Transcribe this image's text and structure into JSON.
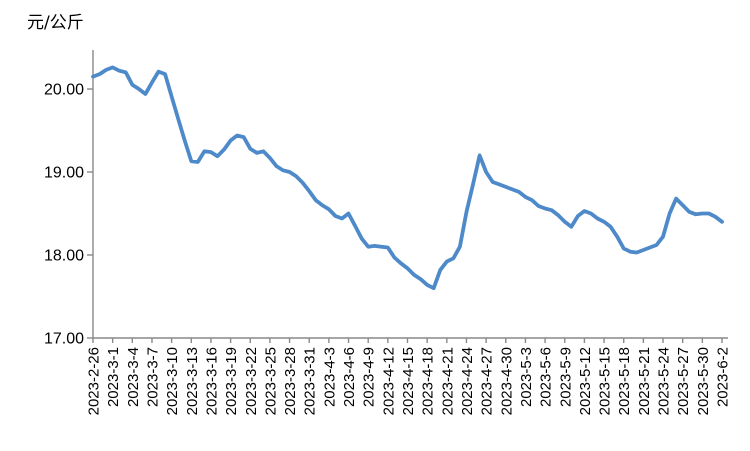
{
  "title": {
    "unit_label": "元/公斤"
  },
  "chart_data": {
    "type": "line",
    "title": "",
    "xlabel": "",
    "ylabel": "元/公斤",
    "legend": false,
    "grid": false,
    "ylim": [
      17.0,
      20.5
    ],
    "y_ticks": [
      {
        "value": 20,
        "label": "20.00"
      },
      {
        "value": 19,
        "label": "19.00"
      },
      {
        "value": 18,
        "label": "18.00"
      },
      {
        "value": 17,
        "label": "17.00"
      }
    ],
    "x_label_every": 3,
    "line_color": "#4E8AC9",
    "axis_color": "#898989",
    "x": [
      "2023-2-26",
      "2023-2-27",
      "2023-2-28",
      "2023-3-1",
      "2023-3-2",
      "2023-3-3",
      "2023-3-4",
      "2023-3-5",
      "2023-3-6",
      "2023-3-7",
      "2023-3-8",
      "2023-3-9",
      "2023-3-10",
      "2023-3-11",
      "2023-3-12",
      "2023-3-13",
      "2023-3-14",
      "2023-3-15",
      "2023-3-16",
      "2023-3-17",
      "2023-3-18",
      "2023-3-19",
      "2023-3-20",
      "2023-3-21",
      "2023-3-22",
      "2023-3-23",
      "2023-3-24",
      "2023-3-25",
      "2023-3-26",
      "2023-3-27",
      "2023-3-28",
      "2023-3-29",
      "2023-3-30",
      "2023-3-31",
      "2023-4-1",
      "2023-4-2",
      "2023-4-3",
      "2023-4-4",
      "2023-4-5",
      "2023-4-6",
      "2023-4-7",
      "2023-4-8",
      "2023-4-9",
      "2023-4-10",
      "2023-4-11",
      "2023-4-12",
      "2023-4-13",
      "2023-4-14",
      "2023-4-15",
      "2023-4-16",
      "2023-4-17",
      "2023-4-18",
      "2023-4-19",
      "2023-4-20",
      "2023-4-21",
      "2023-4-22",
      "2023-4-23",
      "2023-4-24",
      "2023-4-25",
      "2023-4-26",
      "2023-4-27",
      "2023-4-28",
      "2023-4-29",
      "2023-4-30",
      "2023-5-1",
      "2023-5-2",
      "2023-5-3",
      "2023-5-4",
      "2023-5-5",
      "2023-5-6",
      "2023-5-7",
      "2023-5-8",
      "2023-5-9",
      "2023-5-10",
      "2023-5-11",
      "2023-5-12",
      "2023-5-13",
      "2023-5-14",
      "2023-5-15",
      "2023-5-16",
      "2023-5-17",
      "2023-5-18",
      "2023-5-19",
      "2023-5-20",
      "2023-5-21",
      "2023-5-22",
      "2023-5-23",
      "2023-5-24",
      "2023-5-25",
      "2023-5-26",
      "2023-5-27",
      "2023-5-28",
      "2023-5-29",
      "2023-5-30",
      "2023-5-31",
      "2023-6-1",
      "2023-6-2"
    ],
    "values": [
      20.15,
      20.18,
      20.23,
      20.26,
      20.22,
      20.2,
      20.05,
      20.0,
      19.94,
      20.08,
      20.21,
      20.18,
      19.91,
      19.64,
      19.38,
      19.13,
      19.12,
      19.25,
      19.24,
      19.19,
      19.27,
      19.38,
      19.44,
      19.42,
      19.28,
      19.23,
      19.25,
      19.17,
      19.07,
      19.02,
      19.0,
      18.95,
      18.87,
      18.77,
      18.66,
      18.6,
      18.55,
      18.47,
      18.44,
      18.5,
      18.35,
      18.2,
      18.1,
      18.11,
      18.1,
      18.09,
      17.97,
      17.9,
      17.84,
      17.76,
      17.71,
      17.64,
      17.6,
      17.82,
      17.92,
      17.96,
      18.1,
      18.52,
      18.85,
      19.2,
      19.0,
      18.88,
      18.85,
      18.82,
      18.79,
      18.76,
      18.7,
      18.66,
      18.59,
      18.56,
      18.54,
      18.48,
      18.4,
      18.34,
      18.47,
      18.53,
      18.5,
      18.44,
      18.4,
      18.34,
      18.22,
      18.08,
      18.04,
      18.03,
      18.06,
      18.09,
      18.12,
      18.22,
      18.5,
      18.68,
      18.6,
      18.52,
      18.49,
      18.5,
      18.5,
      18.46,
      18.4
    ]
  }
}
